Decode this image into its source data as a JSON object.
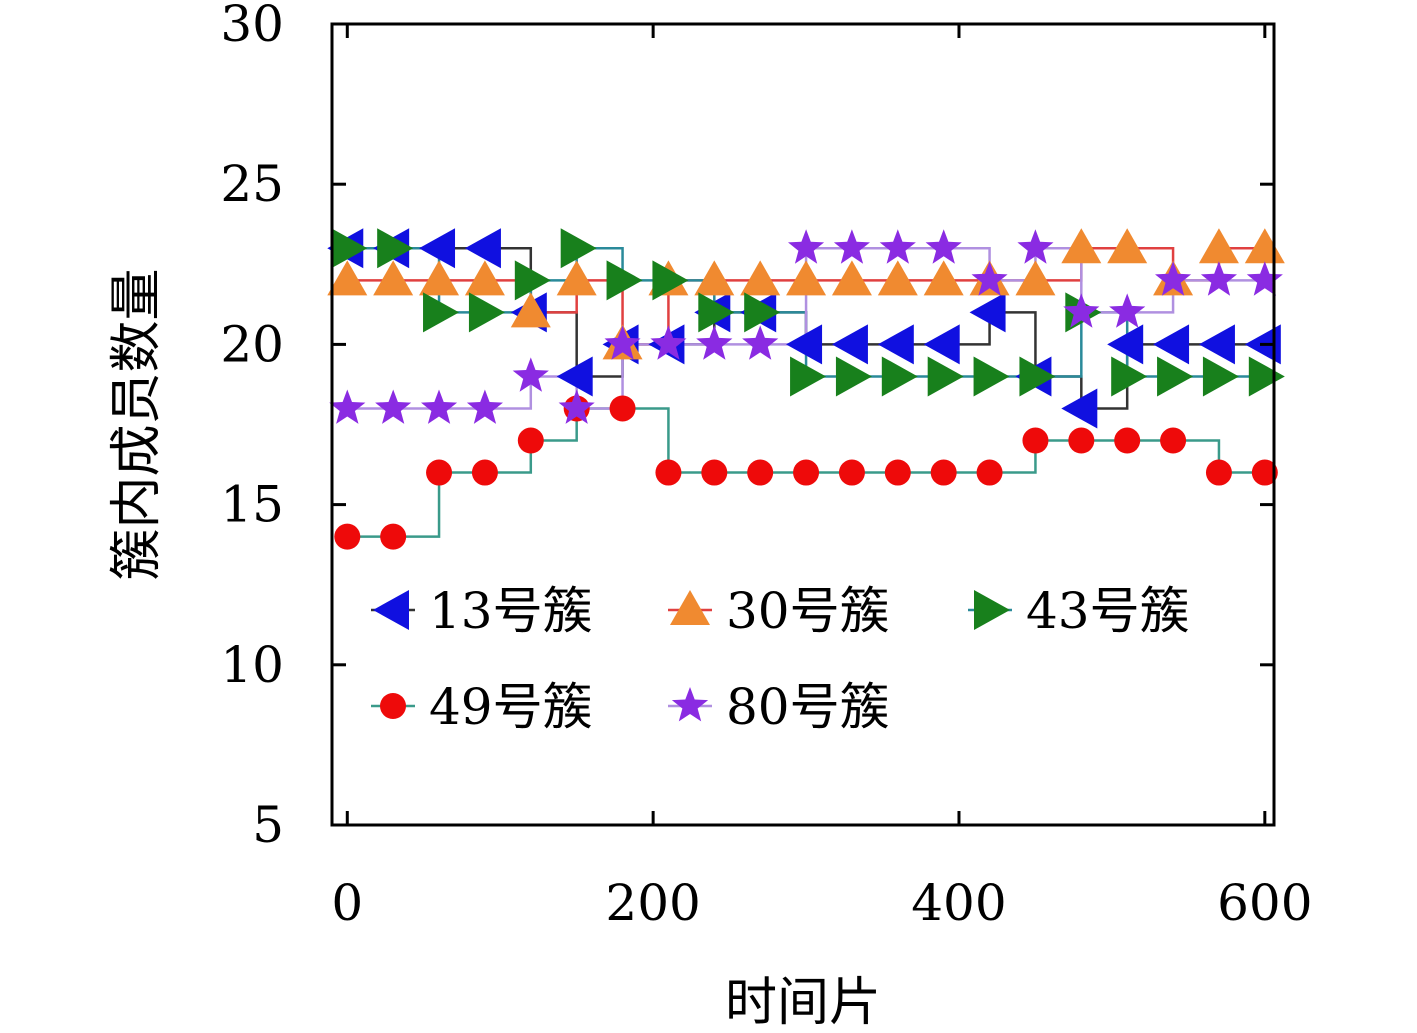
{
  "chart_data": {
    "type": "line",
    "step": "post",
    "xlabel": "时间片",
    "ylabel": "簇内成员数量",
    "xlim": [
      -10,
      606
    ],
    "ylim": [
      5,
      30
    ],
    "xticks": [
      0,
      200,
      400,
      600
    ],
    "yticks": [
      5,
      10,
      15,
      20,
      25,
      30
    ],
    "grid": false,
    "legend_position": "lower-left",
    "series": [
      {
        "name": "13号簇",
        "marker": "triangle-left",
        "marker_color": "#1010e0",
        "line_color": "#333333",
        "x": [
          0,
          30,
          60,
          90,
          120,
          150,
          180,
          210,
          240,
          270,
          300,
          330,
          360,
          390,
          420,
          450,
          480,
          510,
          540,
          570,
          600
        ],
        "y": [
          23,
          23,
          23,
          23,
          21,
          19,
          20,
          20,
          21,
          21,
          20,
          20,
          20,
          20,
          21,
          19,
          18,
          20,
          20,
          20,
          20
        ]
      },
      {
        "name": "30号簇",
        "marker": "triangle-up",
        "marker_color": "#f08a30",
        "line_color": "#e04040",
        "x": [
          0,
          30,
          60,
          90,
          120,
          150,
          180,
          210,
          240,
          270,
          300,
          330,
          360,
          390,
          420,
          450,
          480,
          510,
          540,
          570,
          600
        ],
        "y": [
          22,
          22,
          22,
          22,
          21,
          22,
          20,
          22,
          22,
          22,
          22,
          22,
          22,
          22,
          22,
          22,
          23,
          23,
          22,
          23,
          23
        ]
      },
      {
        "name": "43号簇",
        "marker": "triangle-right",
        "marker_color": "#18801c",
        "line_color": "#2a8a9a",
        "x": [
          0,
          30,
          60,
          90,
          120,
          150,
          180,
          210,
          240,
          270,
          300,
          330,
          360,
          390,
          420,
          450,
          480,
          510,
          540,
          570,
          600
        ],
        "y": [
          23,
          23,
          21,
          21,
          22,
          23,
          22,
          22,
          21,
          21,
          19,
          19,
          19,
          19,
          19,
          19,
          21,
          19,
          19,
          19,
          19
        ]
      },
      {
        "name": "49号簇",
        "marker": "circle",
        "marker_color": "#ee0a0a",
        "line_color": "#3a9a8a",
        "x": [
          0,
          30,
          60,
          90,
          120,
          150,
          180,
          210,
          240,
          270,
          300,
          330,
          360,
          390,
          420,
          450,
          480,
          510,
          540,
          570,
          600
        ],
        "y": [
          14,
          14,
          16,
          16,
          17,
          18,
          18,
          16,
          16,
          16,
          16,
          16,
          16,
          16,
          16,
          17,
          17,
          17,
          17,
          16,
          16
        ]
      },
      {
        "name": "80号簇",
        "marker": "star",
        "marker_color": "#8a2be2",
        "line_color": "#b090e0",
        "x": [
          0,
          30,
          60,
          90,
          120,
          150,
          180,
          210,
          240,
          270,
          300,
          330,
          360,
          390,
          420,
          450,
          480,
          510,
          540,
          570,
          600
        ],
        "y": [
          18,
          18,
          18,
          18,
          19,
          18,
          20,
          20,
          20,
          20,
          23,
          23,
          23,
          23,
          22,
          23,
          21,
          21,
          22,
          22,
          22
        ]
      }
    ]
  }
}
